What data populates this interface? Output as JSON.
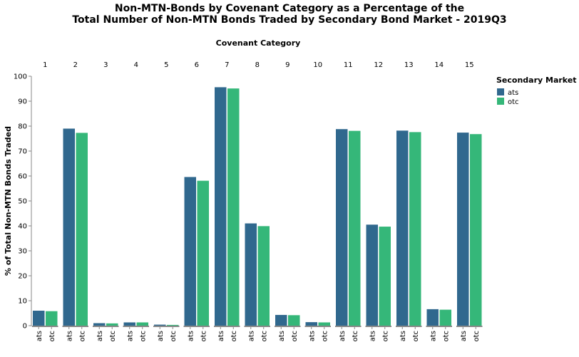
{
  "chart_data": {
    "type": "bar",
    "title_lines": [
      "Non-MTN-Bonds by Covenant Category as a Percentage of the",
      "Total Number of Non-MTN Bonds Traded by Secondary Bond Market - 2019Q3"
    ],
    "facet_title": "Covenant Category",
    "ylabel": "% of Total Non-MTN Bonds Traded",
    "ylim": [
      0,
      100
    ],
    "yticks": [
      0,
      10,
      20,
      30,
      40,
      50,
      60,
      70,
      80,
      90,
      100
    ],
    "categories": [
      "1",
      "2",
      "3",
      "4",
      "5",
      "6",
      "7",
      "8",
      "9",
      "10",
      "11",
      "12",
      "13",
      "14",
      "15"
    ],
    "series": [
      {
        "name": "ats",
        "color": "#30688e",
        "values": [
          6.0,
          79.0,
          1.0,
          1.3,
          0.4,
          59.6,
          95.6,
          41.0,
          4.3,
          1.4,
          78.8,
          40.5,
          78.2,
          6.6,
          77.4
        ]
      },
      {
        "name": "otc",
        "color": "#35b779",
        "values": [
          5.8,
          77.3,
          0.9,
          1.3,
          0.3,
          58.1,
          95.1,
          39.9,
          4.2,
          1.3,
          78.1,
          39.7,
          77.6,
          6.4,
          76.8
        ]
      }
    ],
    "legend": {
      "title": "Secondary Market",
      "position": "right"
    },
    "grid": false
  }
}
